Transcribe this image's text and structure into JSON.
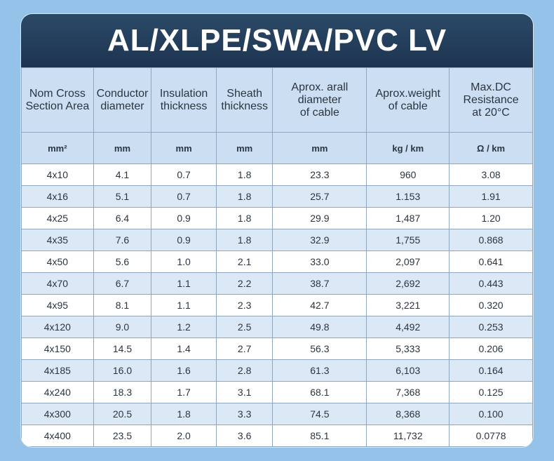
{
  "title": "AL/XLPE/SWA/PVC LV",
  "headers": [
    {
      "line1": "Nom Cross",
      "line2": "Section Area",
      "line3": ""
    },
    {
      "line1": "Conductor",
      "line2": "diameter",
      "line3": ""
    },
    {
      "line1": "Insulation",
      "line2": "thickness",
      "line3": ""
    },
    {
      "line1": "Sheath",
      "line2": "thickness",
      "line3": ""
    },
    {
      "line1": "Aprox. arall",
      "line2": "diameter",
      "line3": "of cable"
    },
    {
      "line1": "Aprox.weight",
      "line2": "of cable",
      "line3": ""
    },
    {
      "line1": "Max.DC",
      "line2": "Resistance",
      "line3": "at 20°C"
    }
  ],
  "units": [
    "mm²",
    "mm",
    "mm",
    "mm",
    "mm",
    "kg / km",
    "Ω / km"
  ],
  "rows": [
    [
      "4x10",
      "4.1",
      "0.7",
      "1.8",
      "23.3",
      "960",
      "3.08"
    ],
    [
      "4x16",
      "5.1",
      "0.7",
      "1.8",
      "25.7",
      "1.153",
      "1.91"
    ],
    [
      "4x25",
      "6.4",
      "0.9",
      "1.8",
      "29.9",
      "1,487",
      "1.20"
    ],
    [
      "4x35",
      "7.6",
      "0.9",
      "1.8",
      "32.9",
      "1,755",
      "0.868"
    ],
    [
      "4x50",
      "5.6",
      "1.0",
      "2.1",
      "33.0",
      "2,097",
      "0.641"
    ],
    [
      "4x70",
      "6.7",
      "1.1",
      "2.2",
      "38.7",
      "2,692",
      "0.443"
    ],
    [
      "4x95",
      "8.1",
      "1.1",
      "2.3",
      "42.7",
      "3,221",
      "0.320"
    ],
    [
      "4x120",
      "9.0",
      "1.2",
      "2.5",
      "49.8",
      "4,492",
      "0.253"
    ],
    [
      "4x150",
      "14.5",
      "1.4",
      "2.7",
      "56.3",
      "5,333",
      "0.206"
    ],
    [
      "4x185",
      "16.0",
      "1.6",
      "2.8",
      "61.3",
      "6,103",
      "0.164"
    ],
    [
      "4x240",
      "18.3",
      "1.7",
      "3.1",
      "68.1",
      "7,368",
      "0.125"
    ],
    [
      "4x300",
      "20.5",
      "1.8",
      "3.3",
      "74.5",
      "8,368",
      "0.100"
    ],
    [
      "4x400",
      "23.5",
      "2.0",
      "3.6",
      "85.1",
      "11,732",
      "0.0778"
    ]
  ]
}
